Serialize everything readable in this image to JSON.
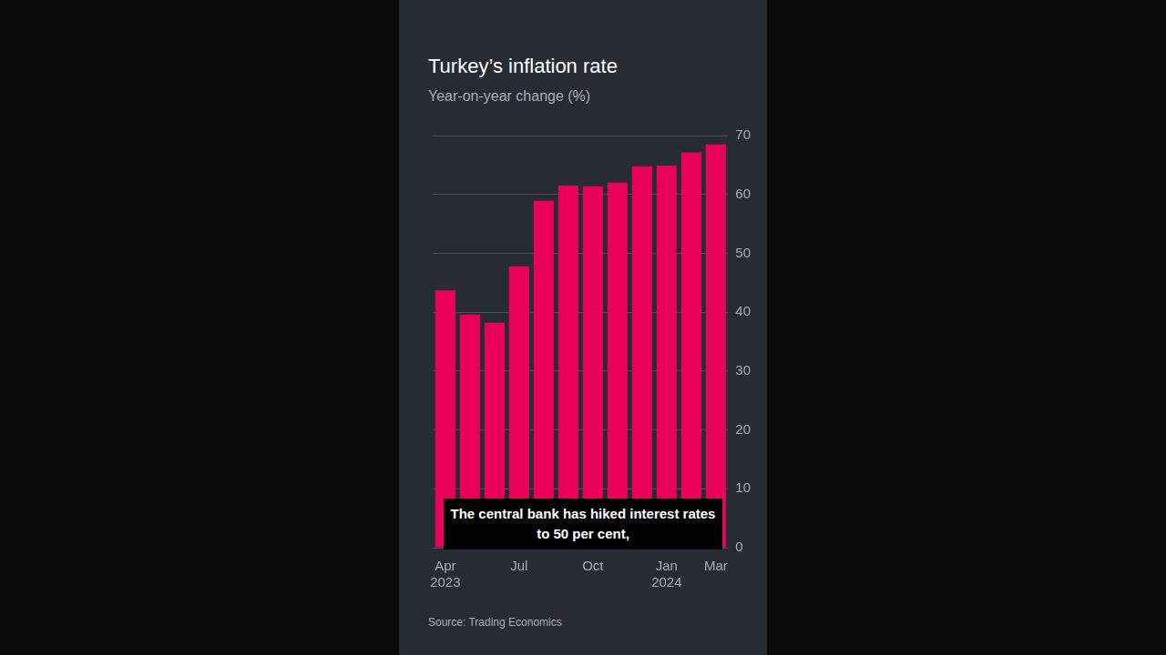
{
  "chart_data": {
    "type": "bar",
    "title": "Turkey’s inflation rate",
    "subtitle": "Year-on-year change (%)",
    "categories": [
      "Apr 2023",
      null,
      null,
      "Jul",
      null,
      null,
      "Oct",
      null,
      null,
      "Jan 2024",
      null,
      "Mar"
    ],
    "values": [
      43.7,
      39.6,
      38.2,
      47.8,
      58.9,
      61.5,
      61.4,
      62.0,
      64.8,
      64.9,
      67.1,
      68.5
    ],
    "color": "#e8005a",
    "ylim": [
      0,
      70
    ],
    "yticks": [
      0,
      10,
      20,
      30,
      40,
      50,
      60,
      70
    ],
    "grid": true,
    "source": "Source: Trading Economics",
    "annotation": "The central bank has hiked interest rates to 50 per cent,"
  }
}
